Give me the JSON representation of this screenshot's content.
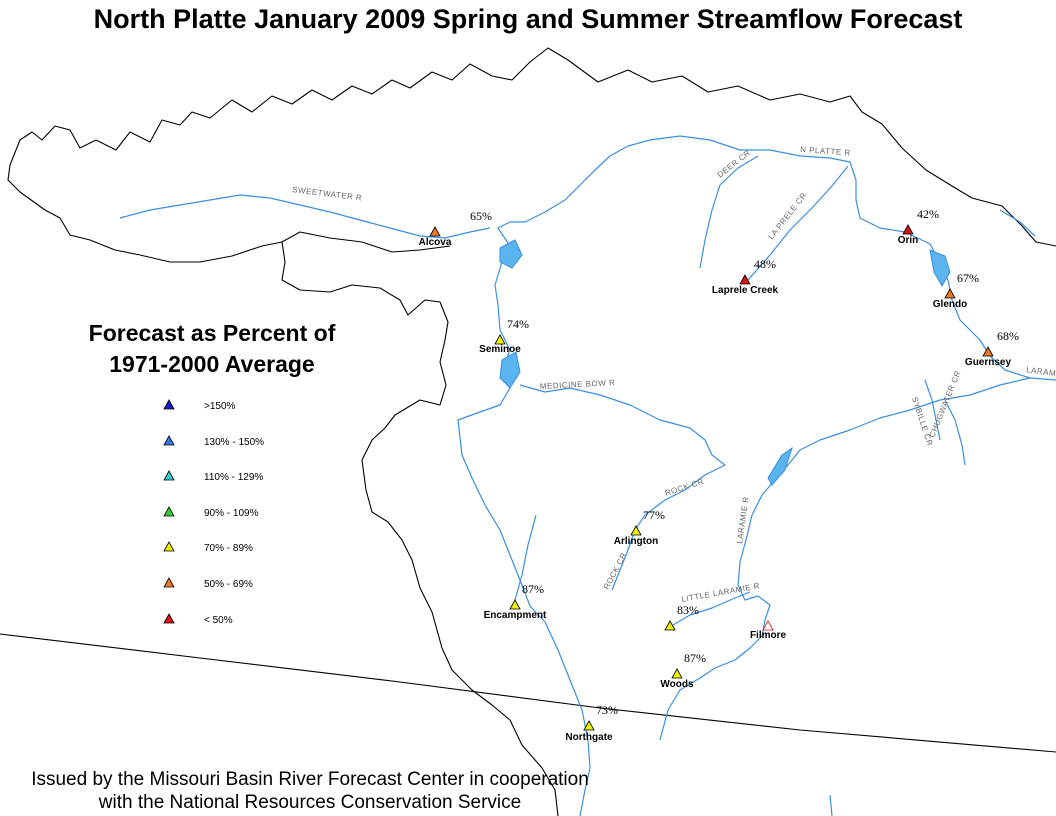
{
  "title": "North Platte January 2009 Spring and Summer Streamflow Forecast",
  "legend": {
    "title_line1": "Forecast as Percent of",
    "title_line2": "1971-2000 Average",
    "classes": [
      {
        "label": ">150%",
        "color": "#1a1acc"
      },
      {
        "label": "130% - 150%",
        "color": "#3377ee"
      },
      {
        "label": "110% - 129%",
        "color": "#33cccc"
      },
      {
        "label": "90% - 109%",
        "color": "#33cc33"
      },
      {
        "label": "70% - 89%",
        "color": "#eeee00"
      },
      {
        "label": "50% - 69%",
        "color": "#ee7722"
      },
      {
        "label": "< 50%",
        "color": "#dd1111"
      }
    ]
  },
  "sites": [
    {
      "name": "Alcova",
      "percent": "65%",
      "color": "#ee7722"
    },
    {
      "name": "Orin",
      "percent": "42%",
      "color": "#dd1111"
    },
    {
      "name": "Laprele Creek",
      "percent": "48%",
      "color": "#dd1111"
    },
    {
      "name": "Glendo",
      "percent": "67%",
      "color": "#ee7722"
    },
    {
      "name": "Guernsey",
      "percent": "68%",
      "color": "#ee7722"
    },
    {
      "name": "Seminoe",
      "percent": "74%",
      "color": "#eeee00"
    },
    {
      "name": "Arlington",
      "percent": "77%",
      "color": "#eeee00"
    },
    {
      "name": "Encampment",
      "percent": "87%",
      "color": "#eeee00"
    },
    {
      "name": "",
      "percent": "83%",
      "color": "#eeee00"
    },
    {
      "name": "Filmore",
      "percent": "",
      "color": "#ffffff"
    },
    {
      "name": "Woods",
      "percent": "87%",
      "color": "#eeee00"
    },
    {
      "name": "Northgate",
      "percent": "73%",
      "color": "#eeee00"
    }
  ],
  "rivers": [
    "SWEETWATER R",
    "DEER CR",
    "N PLATTE R",
    "LA PRELE CR",
    "MEDICINE BOW R",
    "LARAMIE R",
    "SYBILLE CR",
    "CHUGWATER CR",
    "ROCK CR",
    "ROCK CR",
    "LARAMIE R",
    "LITTLE LARAMIE R"
  ],
  "credit_line1": "Issued by the Missouri Basin River Forecast Center in cooperation",
  "credit_line2": "with the National Resources Conservation Service"
}
